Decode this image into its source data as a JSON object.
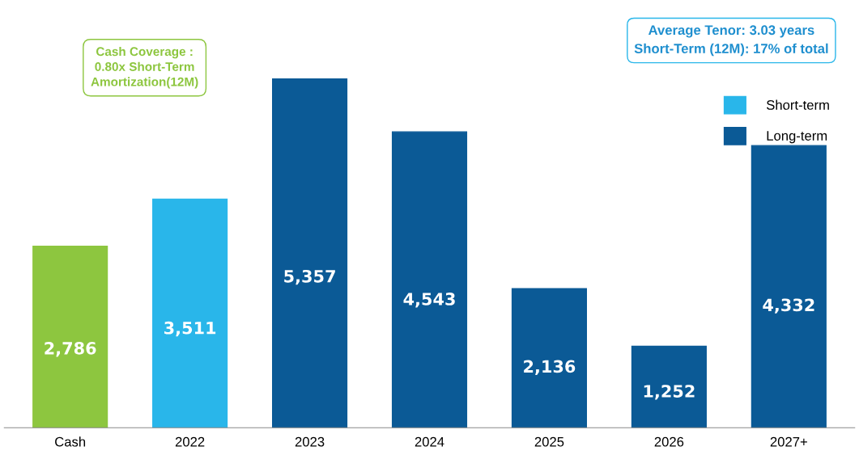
{
  "chart_data": {
    "type": "bar",
    "categories": [
      "Cash",
      "2022",
      "2023",
      "2024",
      "2025",
      "2026",
      "2027+"
    ],
    "series": [
      {
        "color": "#8dc63f",
        "values": [
          2786,
          null,
          null,
          null,
          null,
          null,
          null
        ],
        "value_labels": [
          "2,786",
          null,
          null,
          null,
          null,
          null,
          null
        ]
      },
      {
        "name": "Short-term",
        "color": "#29b6ea",
        "values": [
          null,
          3511,
          null,
          null,
          null,
          null,
          null
        ],
        "value_labels": [
          null,
          "3,511",
          null,
          null,
          null,
          null,
          null
        ]
      },
      {
        "name": "Long-term",
        "color": "#0b5a96",
        "values": [
          null,
          null,
          5357,
          4543,
          2136,
          1252,
          4332
        ],
        "value_labels": [
          null,
          null,
          "5,357",
          "4,543",
          "2,136",
          "1,252",
          "4,332"
        ]
      }
    ],
    "tick_labels": "x",
    "legend": "top right",
    "annotations": [
      "Cash Coverage :\n0.80x Short-Term\nAmortization(12M)",
      "Average Tenor: 3.03 years\nShort-Term (12M): 17% of total"
    ]
  }
}
